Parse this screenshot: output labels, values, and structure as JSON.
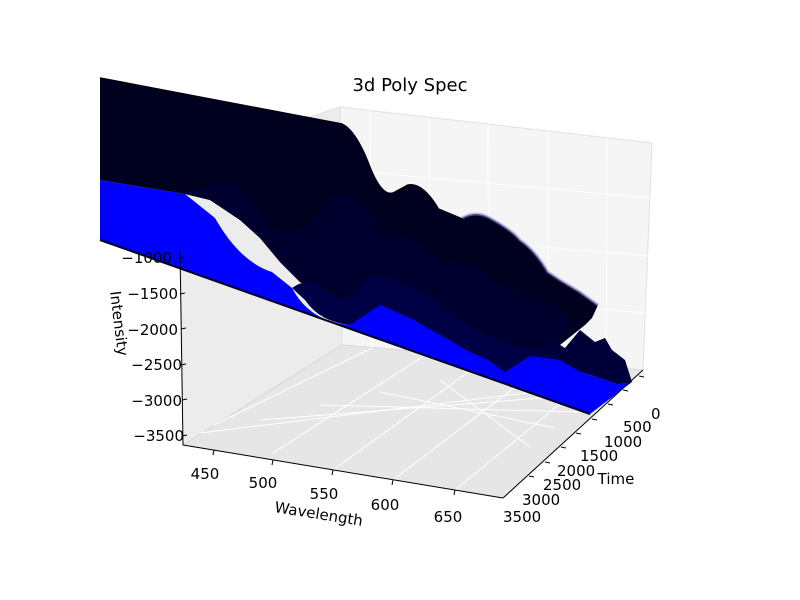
{
  "chart_data": {
    "type": "surface3d",
    "title": "3d Poly Spec",
    "xlabel": "Wavelength",
    "ylabel": "Time",
    "zlabel": "Intensity",
    "x_ticks": [
      "450",
      "500",
      "550",
      "600",
      "650"
    ],
    "y_ticks": [
      "0",
      "500",
      "1000",
      "1500",
      "2000",
      "2500",
      "3000",
      "3500"
    ],
    "z_ticks": [
      "−1000",
      "−1500",
      "−2000",
      "−2500",
      "−3000",
      "−3500"
    ],
    "xlim": [
      430,
      680
    ],
    "ylim": [
      0,
      3500
    ],
    "zlim": [
      -3600,
      -500
    ],
    "series": [
      {
        "name": "spectral surface",
        "color": "#000033",
        "edge": "#000044"
      },
      {
        "name": "floor fill",
        "color": "#0000ff"
      }
    ],
    "ridges": [
      {
        "wavelength": 500,
        "time": 300,
        "intensity": -900
      },
      {
        "wavelength": 555,
        "time": 800,
        "intensity": -1100
      },
      {
        "wavelength": 590,
        "time": 1600,
        "intensity": -1500
      },
      {
        "wavelength": 630,
        "time": 2600,
        "intensity": -1900
      }
    ]
  }
}
